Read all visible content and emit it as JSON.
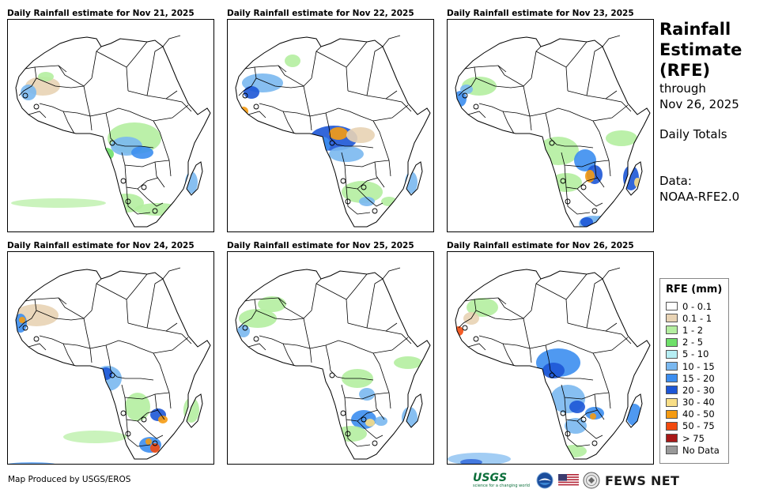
{
  "panels": [
    {
      "title": "Daily Rainfall estimate for Nov 21, 2025"
    },
    {
      "title": "Daily Rainfall estimate for Nov 22, 2025"
    },
    {
      "title": "Daily Rainfall estimate for Nov 23, 2025"
    },
    {
      "title": "Daily Rainfall estimate for Nov 24, 2025"
    },
    {
      "title": "Daily Rainfall estimate for Nov 25, 2025"
    },
    {
      "title": "Daily Rainfall estimate for Nov 26, 2025"
    }
  ],
  "side": {
    "title_line1": "Rainfall",
    "title_line2": "Estimate",
    "title_line3": "(RFE)",
    "through": "through",
    "date": "Nov 26, 2025",
    "totals": "Daily Totals",
    "data_label": "Data:",
    "data_source": "NOAA-RFE2.0"
  },
  "legend": {
    "title": "RFE (mm)",
    "items": [
      {
        "label": "0 - 0.1",
        "color": "#ffffff"
      },
      {
        "label": "0.1 - 1",
        "color": "#e8d3b4"
      },
      {
        "label": "1 - 2",
        "color": "#b4eea0"
      },
      {
        "label": "2 - 5",
        "color": "#6fe06a"
      },
      {
        "label": "5 - 10",
        "color": "#b6eef4"
      },
      {
        "label": "10 - 15",
        "color": "#7ab8f0"
      },
      {
        "label": "15 - 20",
        "color": "#3c8ef0"
      },
      {
        "label": "20 - 30",
        "color": "#1d56d6"
      },
      {
        "label": "30 - 40",
        "color": "#f8de86"
      },
      {
        "label": "40 - 50",
        "color": "#f59b12"
      },
      {
        "label": "50 - 75",
        "color": "#f24a0e"
      },
      {
        "label": "> 75",
        "color": "#a81818"
      },
      {
        "label": "No Data",
        "color": "#999999"
      }
    ]
  },
  "footer": {
    "credit": "Map Produced by USGS/EROS",
    "usgs": "USGS",
    "usgs_tagline": "science for a changing world",
    "fews": "FEWS NET"
  }
}
